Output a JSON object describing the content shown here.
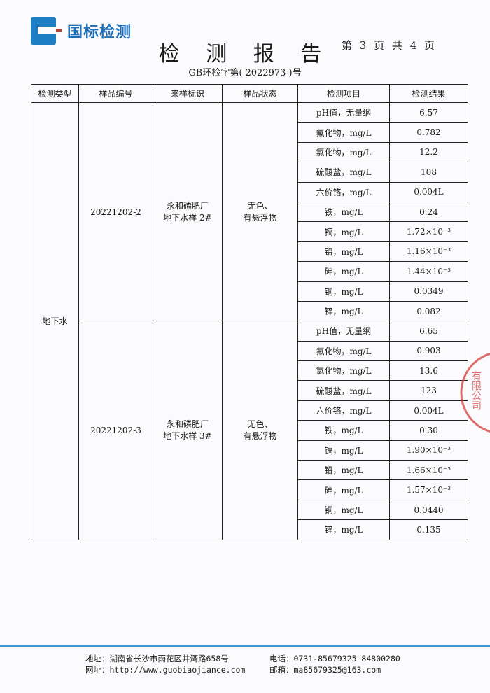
{
  "header": {
    "logo_text": "国标检测",
    "title": "检 测 报 告",
    "page_prefix": "第",
    "page_current": "3",
    "page_mid": "页 共",
    "page_total": "4",
    "page_suffix": "页",
    "report_no": "GB环检字第( 2022973 )号"
  },
  "table": {
    "columns": [
      "检测类型",
      "样品编号",
      "来样标识",
      "样品状态",
      "检测项目",
      "检测结果"
    ],
    "type": "地下水",
    "samples": [
      {
        "id": "20221202-2",
        "label_line1": "永和磷肥厂",
        "label_line2": "地下水样 2#",
        "state_line1": "无色、",
        "state_line2": "有悬浮物",
        "items": [
          [
            "pH值，无量纲",
            "6.57"
          ],
          [
            "氟化物，mg/L",
            "0.782"
          ],
          [
            "氯化物，mg/L",
            "12.2"
          ],
          [
            "硫酸盐，mg/L",
            "108"
          ],
          [
            "六价铬，mg/L",
            "0.004L"
          ],
          [
            "铁，mg/L",
            "0.24"
          ],
          [
            "镉，mg/L",
            "1.72×10⁻³"
          ],
          [
            "铅，mg/L",
            "1.16×10⁻³"
          ],
          [
            "砷，mg/L",
            "1.44×10⁻³"
          ],
          [
            "铜，mg/L",
            "0.0349"
          ],
          [
            "锌，mg/L",
            "0.082"
          ]
        ]
      },
      {
        "id": "20221202-3",
        "label_line1": "永和磷肥厂",
        "label_line2": "地下水样 3#",
        "state_line1": "无色、",
        "state_line2": "有悬浮物",
        "items": [
          [
            "pH值，无量纲",
            "6.65"
          ],
          [
            "氟化物，mg/L",
            "0.903"
          ],
          [
            "氯化物，mg/L",
            "13.6"
          ],
          [
            "硫酸盐，mg/L",
            "123"
          ],
          [
            "六价铬，mg/L",
            "0.004L"
          ],
          [
            "铁，mg/L",
            "0.30"
          ],
          [
            "镉，mg/L",
            "1.90×10⁻³"
          ],
          [
            "铅，mg/L",
            "1.66×10⁻³"
          ],
          [
            "砷，mg/L",
            "1.57×10⁻³"
          ],
          [
            "铜，mg/L",
            "0.0440"
          ],
          [
            "锌，mg/L",
            "0.135"
          ]
        ]
      }
    ]
  },
  "footer": {
    "address": "地址：湖南省长沙市雨花区井湾路658号",
    "website": "网址：http://www.guobiaojiance.com",
    "phone": "电话：0731-85679325  84800280",
    "email": "邮箱：ma85679325@163.com"
  },
  "stamp": {
    "text": "有限公司",
    "color": "#d63c3c"
  },
  "colors": {
    "brand": "#1f7fc4",
    "footer_line": "#1f7fc4"
  }
}
